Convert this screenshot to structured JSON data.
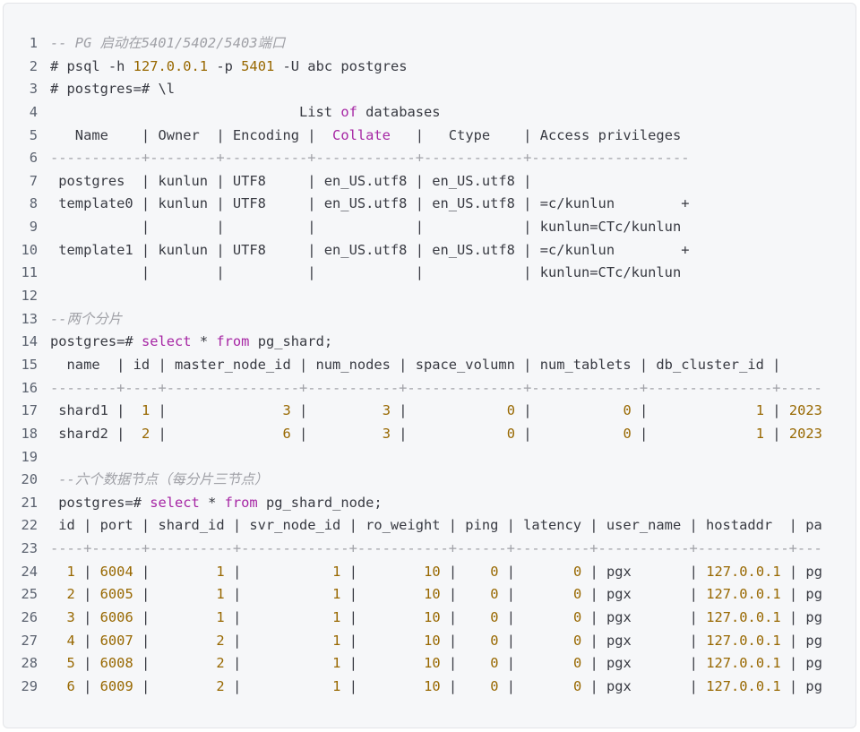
{
  "colors": {
    "background": "#f6f7f9",
    "text": "#383a42",
    "comment": "#a0a1a7",
    "number": "#986801",
    "keyword": "#a626a4"
  },
  "lines": [
    [
      [
        "cm",
        "-- PG 启动在5401/5402/5403端口"
      ]
    ],
    [
      [
        "",
        "# psql -h "
      ],
      [
        "num",
        "127.0.0.1"
      ],
      [
        "",
        " -p "
      ],
      [
        "num",
        "5401"
      ],
      [
        "",
        " -U abc postgres"
      ]
    ],
    [
      [
        "",
        "# postgres=# \\l"
      ]
    ],
    [
      [
        "",
        "                              List "
      ],
      [
        "kw",
        "of"
      ],
      [
        "",
        " databases"
      ]
    ],
    [
      [
        "",
        "   Name    | Owner  | Encoding |  "
      ],
      [
        "kw",
        "Collate"
      ],
      [
        "",
        "   |   Ctype    | Access privileges"
      ]
    ],
    [
      [
        "dash",
        "-----------+--------+----------+------------+------------+-------------------"
      ]
    ],
    [
      [
        "",
        " postgres  | kunlun | UTF8     | en_US.utf8 | en_US.utf8 | "
      ]
    ],
    [
      [
        "",
        " template0 | kunlun | UTF8     | en_US.utf8 | en_US.utf8 | =c/kunlun        +"
      ]
    ],
    [
      [
        "",
        "           |        |          |            |            | kunlun=CTc/kunlun"
      ]
    ],
    [
      [
        "",
        " template1 | kunlun | UTF8     | en_US.utf8 | en_US.utf8 | =c/kunlun        +"
      ]
    ],
    [
      [
        "",
        "           |        |          |            |            | kunlun=CTc/kunlun"
      ]
    ],
    [],
    [
      [
        "cm",
        "--两个分片"
      ]
    ],
    [
      [
        "",
        "postgres=# "
      ],
      [
        "kw",
        "select"
      ],
      [
        "",
        " * "
      ],
      [
        "kw",
        "from"
      ],
      [
        "",
        " pg_shard;"
      ]
    ],
    [
      [
        "",
        "  name  | id | master_node_id | num_nodes | space_volumn | num_tablets | db_cluster_id |"
      ]
    ],
    [
      [
        "dash",
        "--------+----+----------------+-----------+--------------+-------------+---------------+-----"
      ]
    ],
    [
      [
        "",
        " shard1 |  "
      ],
      [
        "num",
        "1"
      ],
      [
        "",
        " |              "
      ],
      [
        "num",
        "3"
      ],
      [
        "",
        " |         "
      ],
      [
        "num",
        "3"
      ],
      [
        "",
        " |            "
      ],
      [
        "num",
        "0"
      ],
      [
        "",
        " |           "
      ],
      [
        "num",
        "0"
      ],
      [
        "",
        " |             "
      ],
      [
        "num",
        "1"
      ],
      [
        "",
        " | "
      ],
      [
        "num",
        "2023"
      ]
    ],
    [
      [
        "",
        " shard2 |  "
      ],
      [
        "num",
        "2"
      ],
      [
        "",
        " |              "
      ],
      [
        "num",
        "6"
      ],
      [
        "",
        " |         "
      ],
      [
        "num",
        "3"
      ],
      [
        "",
        " |            "
      ],
      [
        "num",
        "0"
      ],
      [
        "",
        " |           "
      ],
      [
        "num",
        "0"
      ],
      [
        "",
        " |             "
      ],
      [
        "num",
        "1"
      ],
      [
        "",
        " | "
      ],
      [
        "num",
        "2023"
      ]
    ],
    [],
    [
      [
        "",
        " "
      ],
      [
        "cm",
        "--六个数据节点（每分片三节点）"
      ]
    ],
    [
      [
        "",
        " postgres=# "
      ],
      [
        "kw",
        "select"
      ],
      [
        "",
        " * "
      ],
      [
        "kw",
        "from"
      ],
      [
        "",
        " pg_shard_node;"
      ]
    ],
    [
      [
        "",
        " id | port | shard_id | svr_node_id | ro_weight | ping | latency | user_name | hostaddr  | pa"
      ]
    ],
    [
      [
        "dash",
        "----+------+----------+-------------+-----------+------+---------+-----------+-----------+---"
      ]
    ],
    [
      [
        "",
        "  "
      ],
      [
        "num",
        "1"
      ],
      [
        "",
        " | "
      ],
      [
        "num",
        "6004"
      ],
      [
        "",
        " |        "
      ],
      [
        "num",
        "1"
      ],
      [
        "",
        " |           "
      ],
      [
        "num",
        "1"
      ],
      [
        "",
        " |        "
      ],
      [
        "num",
        "10"
      ],
      [
        "",
        " |    "
      ],
      [
        "num",
        "0"
      ],
      [
        "",
        " |       "
      ],
      [
        "num",
        "0"
      ],
      [
        "",
        " | pgx       | "
      ],
      [
        "num",
        "127.0.0.1"
      ],
      [
        "",
        " | pg"
      ]
    ],
    [
      [
        "",
        "  "
      ],
      [
        "num",
        "2"
      ],
      [
        "",
        " | "
      ],
      [
        "num",
        "6005"
      ],
      [
        "",
        " |        "
      ],
      [
        "num",
        "1"
      ],
      [
        "",
        " |           "
      ],
      [
        "num",
        "1"
      ],
      [
        "",
        " |        "
      ],
      [
        "num",
        "10"
      ],
      [
        "",
        " |    "
      ],
      [
        "num",
        "0"
      ],
      [
        "",
        " |       "
      ],
      [
        "num",
        "0"
      ],
      [
        "",
        " | pgx       | "
      ],
      [
        "num",
        "127.0.0.1"
      ],
      [
        "",
        " | pg"
      ]
    ],
    [
      [
        "",
        "  "
      ],
      [
        "num",
        "3"
      ],
      [
        "",
        " | "
      ],
      [
        "num",
        "6006"
      ],
      [
        "",
        " |        "
      ],
      [
        "num",
        "1"
      ],
      [
        "",
        " |           "
      ],
      [
        "num",
        "1"
      ],
      [
        "",
        " |        "
      ],
      [
        "num",
        "10"
      ],
      [
        "",
        " |    "
      ],
      [
        "num",
        "0"
      ],
      [
        "",
        " |       "
      ],
      [
        "num",
        "0"
      ],
      [
        "",
        " | pgx       | "
      ],
      [
        "num",
        "127.0.0.1"
      ],
      [
        "",
        " | pg"
      ]
    ],
    [
      [
        "",
        "  "
      ],
      [
        "num",
        "4"
      ],
      [
        "",
        " | "
      ],
      [
        "num",
        "6007"
      ],
      [
        "",
        " |        "
      ],
      [
        "num",
        "2"
      ],
      [
        "",
        " |           "
      ],
      [
        "num",
        "1"
      ],
      [
        "",
        " |        "
      ],
      [
        "num",
        "10"
      ],
      [
        "",
        " |    "
      ],
      [
        "num",
        "0"
      ],
      [
        "",
        " |       "
      ],
      [
        "num",
        "0"
      ],
      [
        "",
        " | pgx       | "
      ],
      [
        "num",
        "127.0.0.1"
      ],
      [
        "",
        " | pg"
      ]
    ],
    [
      [
        "",
        "  "
      ],
      [
        "num",
        "5"
      ],
      [
        "",
        " | "
      ],
      [
        "num",
        "6008"
      ],
      [
        "",
        " |        "
      ],
      [
        "num",
        "2"
      ],
      [
        "",
        " |           "
      ],
      [
        "num",
        "1"
      ],
      [
        "",
        " |        "
      ],
      [
        "num",
        "10"
      ],
      [
        "",
        " |    "
      ],
      [
        "num",
        "0"
      ],
      [
        "",
        " |       "
      ],
      [
        "num",
        "0"
      ],
      [
        "",
        " | pgx       | "
      ],
      [
        "num",
        "127.0.0.1"
      ],
      [
        "",
        " | pg"
      ]
    ],
    [
      [
        "",
        "  "
      ],
      [
        "num",
        "6"
      ],
      [
        "",
        " | "
      ],
      [
        "num",
        "6009"
      ],
      [
        "",
        " |        "
      ],
      [
        "num",
        "2"
      ],
      [
        "",
        " |           "
      ],
      [
        "num",
        "1"
      ],
      [
        "",
        " |        "
      ],
      [
        "num",
        "10"
      ],
      [
        "",
        " |    "
      ],
      [
        "num",
        "0"
      ],
      [
        "",
        " |       "
      ],
      [
        "num",
        "0"
      ],
      [
        "",
        " | pgx       | "
      ],
      [
        "num",
        "127.0.0.1"
      ],
      [
        "",
        " | pg"
      ]
    ]
  ]
}
